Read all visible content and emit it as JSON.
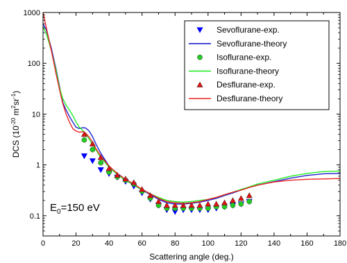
{
  "chart_data": {
    "type": "line",
    "xlabel": "Scattering angle (deg.)",
    "ylabel": {
      "main": "DCS (10",
      "exp1": "-20",
      "mid": " m",
      "exp2": "2",
      "mid2": "sr",
      "exp3": "-1",
      "close": ")"
    },
    "xlim": [
      0,
      180
    ],
    "ylim": [
      0.04,
      1000
    ],
    "yscale": "log",
    "grid": false,
    "legend_position": "top-right",
    "x_ticks": [
      "0",
      "20",
      "40",
      "60",
      "80",
      "100",
      "120",
      "140",
      "160",
      "180"
    ],
    "y_ticks": [
      "0.1",
      "1",
      "10",
      "100",
      "1000"
    ],
    "annotation": {
      "main": "E",
      "sub": "0",
      "rest": "=150 eV"
    },
    "series": [
      {
        "name": "Sevoflurane-exp.",
        "kind": "scatter",
        "marker": "triangle-down",
        "color": "#0000ff",
        "x": [
          25,
          30,
          35,
          40,
          45,
          50,
          55,
          60,
          65,
          70,
          75,
          80,
          85,
          90,
          95,
          100,
          105,
          110,
          115,
          120,
          125
        ],
        "y": [
          1.5,
          1.2,
          0.8,
          0.67,
          0.57,
          0.47,
          0.38,
          0.28,
          0.21,
          0.16,
          0.13,
          0.12,
          0.13,
          0.13,
          0.13,
          0.13,
          0.14,
          0.15,
          0.16,
          0.17,
          0.19
        ]
      },
      {
        "name": "Sevoflurane-theory",
        "kind": "line",
        "color": "#1f1fcf",
        "x": [
          0,
          2,
          5,
          8,
          10,
          12,
          14,
          16,
          18,
          20,
          22,
          24,
          26,
          28,
          30,
          32,
          35,
          40,
          45,
          50,
          55,
          60,
          65,
          70,
          75,
          80,
          85,
          90,
          95,
          100,
          105,
          110,
          115,
          120,
          125,
          130,
          140,
          150,
          160,
          170,
          180
        ],
        "y": [
          600,
          450,
          200,
          75,
          35,
          17,
          12,
          9.0,
          7.0,
          5.5,
          5.2,
          5.4,
          5.3,
          4.6,
          3.6,
          2.6,
          1.7,
          0.95,
          0.65,
          0.5,
          0.4,
          0.32,
          0.26,
          0.21,
          0.18,
          0.17,
          0.17,
          0.175,
          0.185,
          0.2,
          0.22,
          0.25,
          0.28,
          0.32,
          0.36,
          0.4,
          0.47,
          0.55,
          0.62,
          0.67,
          0.68
        ]
      },
      {
        "name": "Isoflurane-exp.",
        "kind": "scatter",
        "marker": "circle",
        "color": "#22cc22",
        "x": [
          25,
          30,
          35,
          40,
          45,
          50,
          55,
          60,
          65,
          70,
          75,
          80,
          85,
          90,
          95,
          100,
          105,
          110,
          115,
          120,
          125
        ],
        "y": [
          3.1,
          2.0,
          1.1,
          0.72,
          0.58,
          0.5,
          0.42,
          0.3,
          0.22,
          0.16,
          0.14,
          0.14,
          0.14,
          0.14,
          0.14,
          0.14,
          0.15,
          0.15,
          0.16,
          0.17,
          0.19
        ]
      },
      {
        "name": "Isoflurane-theory",
        "kind": "line",
        "color": "#22ee22",
        "x": [
          0,
          2,
          5,
          8,
          10,
          12,
          14,
          16,
          18,
          20,
          22,
          24,
          26,
          28,
          30,
          32,
          35,
          40,
          45,
          50,
          55,
          60,
          65,
          70,
          75,
          80,
          85,
          90,
          95,
          100,
          105,
          110,
          115,
          120,
          125,
          130,
          140,
          150,
          160,
          170,
          180
        ],
        "y": [
          520,
          380,
          180,
          70,
          33,
          20,
          15,
          12,
          9.5,
          7.0,
          5.5,
          4.8,
          4.0,
          3.2,
          2.5,
          2.0,
          1.4,
          0.9,
          0.65,
          0.5,
          0.4,
          0.32,
          0.27,
          0.23,
          0.2,
          0.19,
          0.185,
          0.19,
          0.2,
          0.21,
          0.23,
          0.26,
          0.29,
          0.33,
          0.37,
          0.42,
          0.5,
          0.6,
          0.68,
          0.74,
          0.76
        ]
      },
      {
        "name": "Desflurane-exp.",
        "kind": "scatter",
        "marker": "triangle-up",
        "color": "#dd1111",
        "x": [
          25,
          30,
          35,
          40,
          45,
          50,
          55,
          60,
          65,
          70,
          75,
          80,
          85,
          90,
          95,
          100,
          105,
          110,
          115,
          120,
          125
        ],
        "y": [
          4.0,
          2.6,
          1.4,
          0.85,
          0.63,
          0.53,
          0.45,
          0.33,
          0.25,
          0.19,
          0.16,
          0.16,
          0.16,
          0.16,
          0.16,
          0.17,
          0.17,
          0.18,
          0.2,
          0.22,
          0.25
        ]
      },
      {
        "name": "Desflurane-theory",
        "kind": "line",
        "color": "#ee2222",
        "x": [
          0,
          2,
          5,
          8,
          10,
          12,
          14,
          16,
          18,
          20,
          22,
          24,
          26,
          28,
          30,
          32,
          35,
          40,
          45,
          50,
          55,
          60,
          65,
          70,
          75,
          80,
          85,
          90,
          95,
          100,
          105,
          110,
          115,
          120,
          125,
          130,
          140,
          150,
          160,
          170,
          180
        ],
        "y": [
          1000,
          500,
          180,
          60,
          30,
          16,
          10,
          7.0,
          5.2,
          4.6,
          4.4,
          4.5,
          4.2,
          3.5,
          2.8,
          2.1,
          1.5,
          0.95,
          0.68,
          0.52,
          0.42,
          0.33,
          0.27,
          0.22,
          0.19,
          0.18,
          0.175,
          0.18,
          0.19,
          0.21,
          0.23,
          0.26,
          0.29,
          0.32,
          0.36,
          0.4,
          0.46,
          0.5,
          0.52,
          0.53,
          0.54
        ]
      }
    ]
  }
}
